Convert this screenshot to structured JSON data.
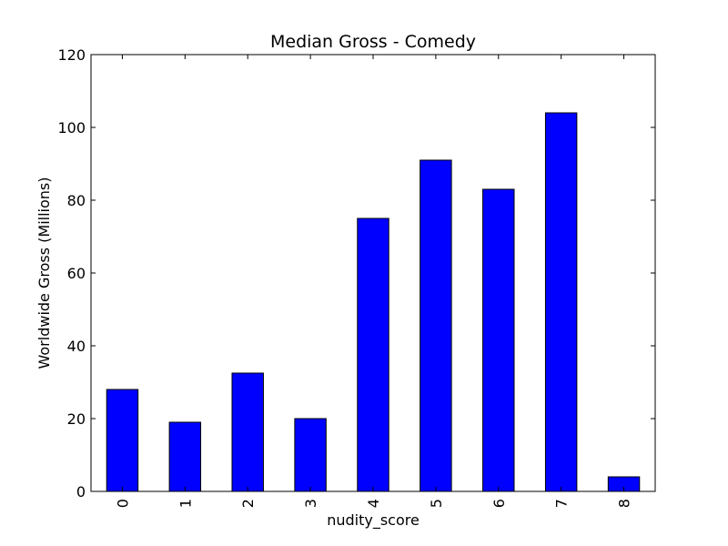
{
  "chart_data": {
    "type": "bar",
    "title": "Median Gross - Comedy",
    "xlabel": "nudity_score",
    "ylabel": "Worldwide Gross (Millions)",
    "categories": [
      "0",
      "1",
      "2",
      "3",
      "4",
      "5",
      "6",
      "7",
      "8"
    ],
    "values": [
      28,
      19,
      32.5,
      20,
      75,
      91,
      83,
      104,
      4
    ],
    "ylim": [
      0,
      120
    ],
    "yticks": [
      "0",
      "20",
      "40",
      "60",
      "80",
      "100",
      "120"
    ],
    "grid": false,
    "legend": "none",
    "bar_color": "#0000ff",
    "edge_color": "#000000"
  }
}
